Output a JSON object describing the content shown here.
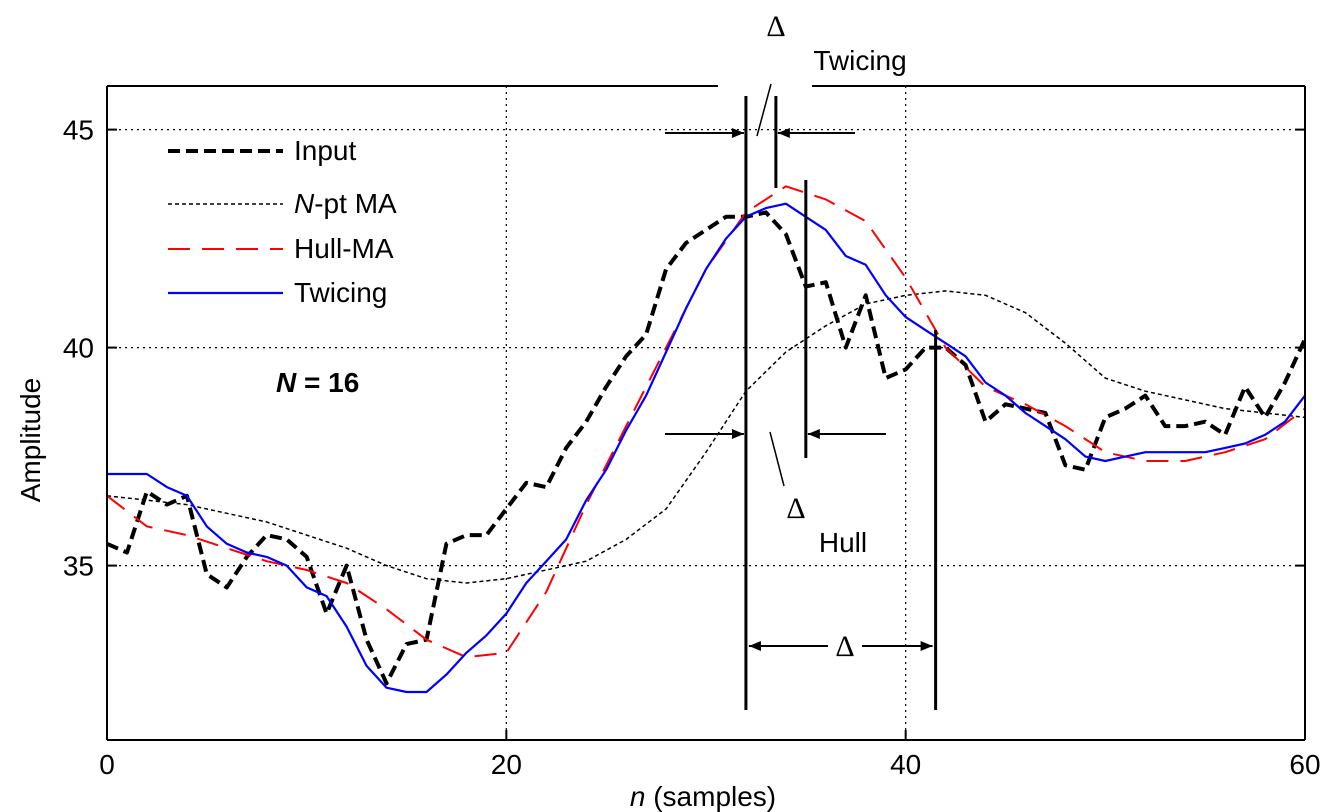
{
  "chart_data": {
    "type": "line",
    "xlabel_italic": "n",
    "xlabel_rest": " (samples)",
    "ylabel": "Amplitude",
    "xlim": [
      0,
      60
    ],
    "ylim": [
      31,
      46
    ],
    "x_ticks": [
      0,
      20,
      40,
      60
    ],
    "y_ticks": [
      35,
      40,
      45
    ],
    "grid": true,
    "legend_position": "top-left",
    "annotation_n": "N = 16",
    "series": [
      {
        "name": "Input",
        "color": "#000000",
        "x": [
          0,
          1,
          2,
          3,
          4,
          5,
          6,
          7,
          8,
          9,
          10,
          11,
          12,
          13,
          14,
          15,
          16,
          17,
          18,
          19,
          20,
          21,
          22,
          23,
          24,
          25,
          26,
          27,
          28,
          29,
          30,
          31,
          32,
          33,
          34,
          35,
          36,
          37,
          38,
          39,
          40,
          41,
          42,
          43,
          44,
          45,
          46,
          47,
          48,
          49,
          50,
          51,
          52,
          53,
          54,
          55,
          56,
          57,
          58,
          59,
          60
        ],
        "y": [
          35.5,
          35.3,
          36.7,
          36.4,
          36.6,
          34.8,
          34.5,
          35.2,
          35.7,
          35.6,
          35.2,
          33.9,
          35.0,
          33.3,
          32.3,
          33.2,
          33.3,
          35.5,
          35.7,
          35.7,
          36.3,
          36.9,
          36.8,
          37.7,
          38.3,
          39.1,
          39.8,
          40.3,
          41.8,
          42.4,
          42.7,
          43.0,
          43.0,
          43.1,
          42.6,
          41.4,
          41.5,
          40.0,
          41.2,
          39.3,
          39.5,
          40.0,
          40.0,
          39.6,
          38.3,
          38.7,
          38.6,
          38.5,
          37.3,
          37.2,
          38.4,
          38.6,
          38.9,
          38.2,
          38.2,
          38.3,
          38.0,
          39.1,
          38.4,
          39.2,
          40.2
        ],
        "style": "bold-dashed"
      },
      {
        "name": "N-pt MA",
        "color": "#000000",
        "x": [
          0,
          2,
          4,
          6,
          8,
          10,
          12,
          14,
          16,
          18,
          20,
          22,
          24,
          26,
          28,
          30,
          32,
          34,
          36,
          38,
          40,
          42,
          44,
          46,
          48,
          50,
          52,
          54,
          56,
          58,
          60
        ],
        "y": [
          36.6,
          36.5,
          36.4,
          36.2,
          36.0,
          35.7,
          35.4,
          35.0,
          34.7,
          34.6,
          34.7,
          34.9,
          35.1,
          35.6,
          36.3,
          37.6,
          39.0,
          39.9,
          40.5,
          41.0,
          41.2,
          41.3,
          41.2,
          40.8,
          40.1,
          39.3,
          39.0,
          38.8,
          38.6,
          38.5,
          38.4
        ],
        "style": "thin-dashed"
      },
      {
        "name": "Hull-MA",
        "color": "#ff0000",
        "x": [
          0,
          2,
          4,
          6,
          8,
          10,
          12,
          14,
          16,
          18,
          20,
          22,
          24,
          26,
          28,
          30,
          32,
          34,
          36,
          38,
          40,
          42,
          44,
          46,
          48,
          50,
          52,
          54,
          56,
          58,
          60
        ],
        "y": [
          36.6,
          35.9,
          35.7,
          35.4,
          35.1,
          34.9,
          34.6,
          34.0,
          33.3,
          32.9,
          33.0,
          34.4,
          36.4,
          38.2,
          40.0,
          41.8,
          43.1,
          43.7,
          43.4,
          42.9,
          41.6,
          40.0,
          39.1,
          38.7,
          38.2,
          37.6,
          37.4,
          37.4,
          37.6,
          37.9,
          38.6
        ],
        "style": "long-dashed"
      },
      {
        "name": "Twicing",
        "color": "#0000ff",
        "x": [
          0,
          1,
          2,
          3,
          4,
          5,
          6,
          7,
          8,
          9,
          10,
          11,
          12,
          13,
          14,
          15,
          16,
          17,
          18,
          19,
          20,
          21,
          22,
          23,
          24,
          25,
          26,
          27,
          28,
          29,
          30,
          31,
          32,
          33,
          34,
          35,
          36,
          37,
          38,
          39,
          40,
          41,
          42,
          43,
          44,
          45,
          46,
          47,
          48,
          49,
          50,
          51,
          52,
          53,
          54,
          55,
          56,
          57,
          58,
          59,
          60
        ],
        "y": [
          37.1,
          37.1,
          37.1,
          36.8,
          36.6,
          35.9,
          35.5,
          35.3,
          35.2,
          35.0,
          34.5,
          34.3,
          33.6,
          32.7,
          32.2,
          32.1,
          32.1,
          32.5,
          33.0,
          33.4,
          33.9,
          34.6,
          35.1,
          35.6,
          36.5,
          37.2,
          38.1,
          38.9,
          39.9,
          40.9,
          41.8,
          42.5,
          43.0,
          43.2,
          43.3,
          43.0,
          42.7,
          42.1,
          41.9,
          41.2,
          40.7,
          40.4,
          40.1,
          39.8,
          39.2,
          38.9,
          38.5,
          38.2,
          37.9,
          37.5,
          37.4,
          37.5,
          37.6,
          37.6,
          37.6,
          37.6,
          37.7,
          37.8,
          38.0,
          38.3,
          38.9
        ],
        "style": "solid"
      }
    ],
    "annotations": {
      "delta": "Δ",
      "twicing_label": "Twicing",
      "hull_label": "Hull"
    },
    "marker_x": {
      "twicing_input_peak": 32,
      "twicing_output_peak": 33.5,
      "hull_peak": 35,
      "ma_peak": 41.5
    }
  }
}
